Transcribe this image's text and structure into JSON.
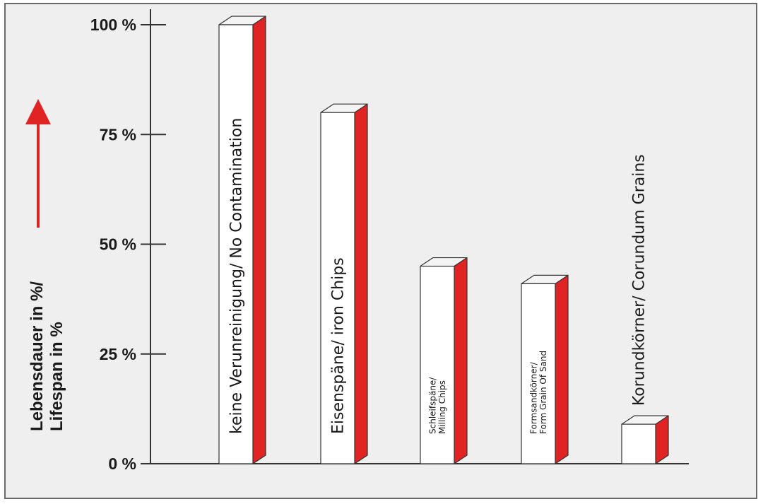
{
  "chart_data": {
    "type": "bar",
    "style": "3d-column",
    "title": "",
    "ylabel_lines": [
      "Lebensdauer in %/",
      "Lifespan in %"
    ],
    "y_ticks": [
      "0 %",
      "25 %",
      "50 %",
      "75 %",
      "100 %"
    ],
    "ylim": [
      0,
      100
    ],
    "grid": false,
    "categories": [
      "keine Verunreinigung/ No Contamination",
      "Eisenspäne/ iron Chips",
      "Schleifspäne/ Milling Chips",
      "Formsandkörner/ Form Grain Of Sand",
      "Korundkörner/ Corundum Grains"
    ],
    "category_label_lines": [
      [
        "keine Verunreinigung/ No Contamination"
      ],
      [
        "Eisenspäne/ iron Chips"
      ],
      [
        "Schleifspäne/",
        "Milling Chips"
      ],
      [
        "Formsandkörner/",
        "Form Grain Of Sand"
      ],
      [
        "Korundkörner/ Corundum Grains"
      ]
    ],
    "values": [
      100,
      80,
      45,
      41,
      9
    ],
    "colors": {
      "front": "#ffffff",
      "side": "#e02424",
      "top": "#f4f4f4",
      "arrow": "#e02424",
      "axis": "#333333"
    }
  }
}
